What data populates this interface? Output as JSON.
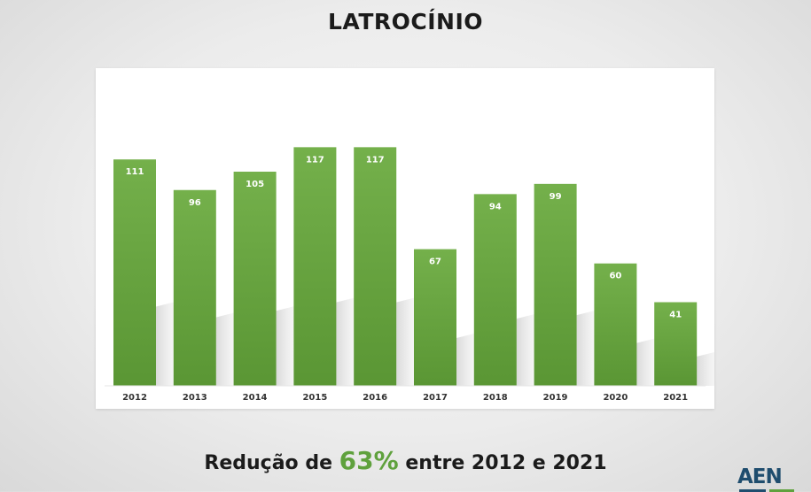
{
  "header": {
    "title": "LATROCÍNIO"
  },
  "footer": {
    "prefix": "Redução de",
    "highlight": "63%",
    "suffix": "entre 2012 e 2021",
    "logo_text": "AEN"
  },
  "colors": {
    "bar_top": "#74b04b",
    "bar_bottom": "#5a9634",
    "highlight": "#5fa13d",
    "logo_blue": "#1f4d6e"
  },
  "chart_data": {
    "type": "bar",
    "title": "LATROCÍNIO",
    "categories": [
      "2012",
      "2013",
      "2014",
      "2015",
      "2016",
      "2017",
      "2018",
      "2019",
      "2020",
      "2021"
    ],
    "values": [
      111,
      96,
      105,
      117,
      117,
      67,
      94,
      99,
      60,
      41
    ],
    "data_labels": [
      "111",
      "96",
      "105",
      "117",
      "117",
      "67",
      "94",
      "99",
      "60",
      "41"
    ],
    "xlabel": "",
    "ylabel": "",
    "ylim": [
      0,
      128
    ],
    "grid": false,
    "legend": "none"
  }
}
